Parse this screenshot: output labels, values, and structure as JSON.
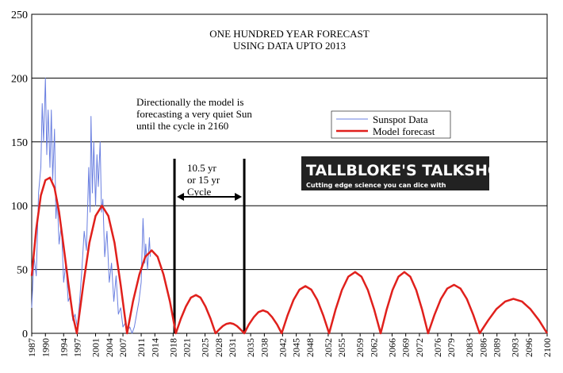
{
  "chart_data": {
    "type": "line",
    "title": [
      "ONE HUNDRED YEAR FORECAST",
      "USING DATA UPTO 2013"
    ],
    "annotations": {
      "note": [
        "Directionally the model is",
        "forecasting a very quiet Sun",
        "until the cycle in 2160"
      ],
      "cycle": [
        "10.5 yr",
        "or 15 yr",
        "Cycle"
      ],
      "logo": "TALLBLOKE'S TALKSHOP",
      "logo_tagline": "Cutting edge science you can dice with"
    },
    "vlines": [
      2018.3,
      2033.6
    ],
    "xlim": [
      1987,
      2100
    ],
    "xticks": [
      1987,
      1990,
      1994,
      1997,
      2001,
      2004,
      2007,
      2011,
      2014,
      2018,
      2021,
      2025,
      2028,
      2031,
      2035,
      2038,
      2042,
      2045,
      2048,
      2052,
      2055,
      2059,
      2062,
      2066,
      2069,
      2072,
      2076,
      2079,
      2083,
      2086,
      2089,
      2093,
      2096,
      2100
    ],
    "ylim": [
      0,
      250
    ],
    "yticks": [
      0,
      50,
      100,
      150,
      200,
      250
    ],
    "grid": true,
    "legend": "upper-right",
    "series": [
      {
        "name": "Sunspot Data",
        "color": "#6a7fe0",
        "width": 1,
        "x": [
          1987,
          1987.5,
          1988,
          1988.5,
          1989,
          1989.3,
          1989.6,
          1990,
          1990.3,
          1990.6,
          1991,
          1991.3,
          1991.6,
          1992,
          1992.3,
          1992.6,
          1993,
          1993.5,
          1994,
          1994.5,
          1995,
          1995.5,
          1996,
          1996.5,
          1997,
          1997.5,
          1998,
          1998.5,
          1999,
          1999.5,
          1999.8,
          2000,
          2000.3,
          2000.6,
          2001,
          2001.3,
          2001.6,
          2002,
          2002.3,
          2002.6,
          2003,
          2003.5,
          2004,
          2004.5,
          2005,
          2005.5,
          2006,
          2006.5,
          2007,
          2007.5,
          2008,
          2008.5,
          2009,
          2009.5,
          2010,
          2010.5,
          2011,
          2011.4,
          2011.8,
          2012,
          2012.4,
          2012.8,
          2013
        ],
        "values": [
          20,
          60,
          45,
          110,
          130,
          180,
          150,
          200,
          140,
          175,
          130,
          175,
          120,
          160,
          90,
          105,
          70,
          85,
          40,
          55,
          25,
          30,
          10,
          15,
          5,
          25,
          50,
          80,
          65,
          130,
          95,
          170,
          110,
          150,
          100,
          140,
          115,
          150,
          95,
          105,
          60,
          80,
          40,
          55,
          25,
          45,
          15,
          20,
          5,
          8,
          2,
          5,
          0,
          5,
          15,
          25,
          40,
          90,
          55,
          70,
          50,
          75,
          60
        ]
      },
      {
        "name": "Model forecast",
        "color": "#e0201c",
        "width": 2.5,
        "x": [
          1987,
          1988,
          1989,
          1990,
          1991,
          1992,
          1993,
          1994,
          1995,
          1996,
          1996.9,
          1998.3,
          1999.65,
          2001.0,
          2002.4,
          2003.8,
          2005.15,
          2006.5,
          2007.9,
          2009.2,
          2010.6,
          2011.9,
          2013.3,
          2014.6,
          2015.9,
          2017.3,
          2018.6,
          2019.7,
          2020.8,
          2021.9,
          2023.0,
          2024.0,
          2025.1,
          2026.2,
          2027.3,
          2028.1,
          2028.9,
          2029.7,
          2030.5,
          2031.2,
          2032.0,
          2032.8,
          2033.6,
          2034.6,
          2035.7,
          2036.7,
          2037.7,
          2038.7,
          2039.7,
          2040.8,
          2041.8,
          2043.1,
          2044.4,
          2045.7,
          2047.0,
          2048.3,
          2049.6,
          2050.9,
          2052.2,
          2053.6,
          2055.0,
          2056.4,
          2057.9,
          2059.3,
          2060.7,
          2062.1,
          2063.5,
          2064.8,
          2066.1,
          2067.4,
          2068.7,
          2070.0,
          2071.3,
          2072.6,
          2073.9,
          2075.3,
          2076.7,
          2078.1,
          2079.6,
          2081.0,
          2082.4,
          2083.8,
          2085.2,
          2087.1,
          2088.9,
          2090.8,
          2092.6,
          2094.5,
          2096.3,
          2098.2,
          2100
        ],
        "values": [
          45,
          82,
          108,
          120,
          122,
          114,
          95,
          68,
          40,
          14,
          0,
          38,
          71,
          92,
          100,
          92,
          71,
          38,
          0,
          25,
          46,
          60,
          65,
          60,
          46,
          25,
          0,
          11.5,
          21,
          28,
          30,
          28,
          21,
          11.5,
          0,
          3,
          5.7,
          7.4,
          8,
          7.4,
          5.7,
          3,
          0,
          6.9,
          12.7,
          16.6,
          18,
          16.6,
          12.7,
          6.9,
          0,
          14.2,
          26.2,
          34.2,
          37,
          34.2,
          26.2,
          14.2,
          0,
          18.4,
          33.9,
          44.4,
          48,
          44.4,
          33.9,
          18.4,
          0,
          18.4,
          33.9,
          44.4,
          48,
          44.4,
          33.9,
          18.4,
          0,
          14.5,
          26.9,
          35.1,
          38,
          35.1,
          26.9,
          14.5,
          0,
          10.3,
          19.1,
          24.9,
          27,
          24.9,
          19.1,
          10.3,
          0
        ]
      }
    ]
  }
}
